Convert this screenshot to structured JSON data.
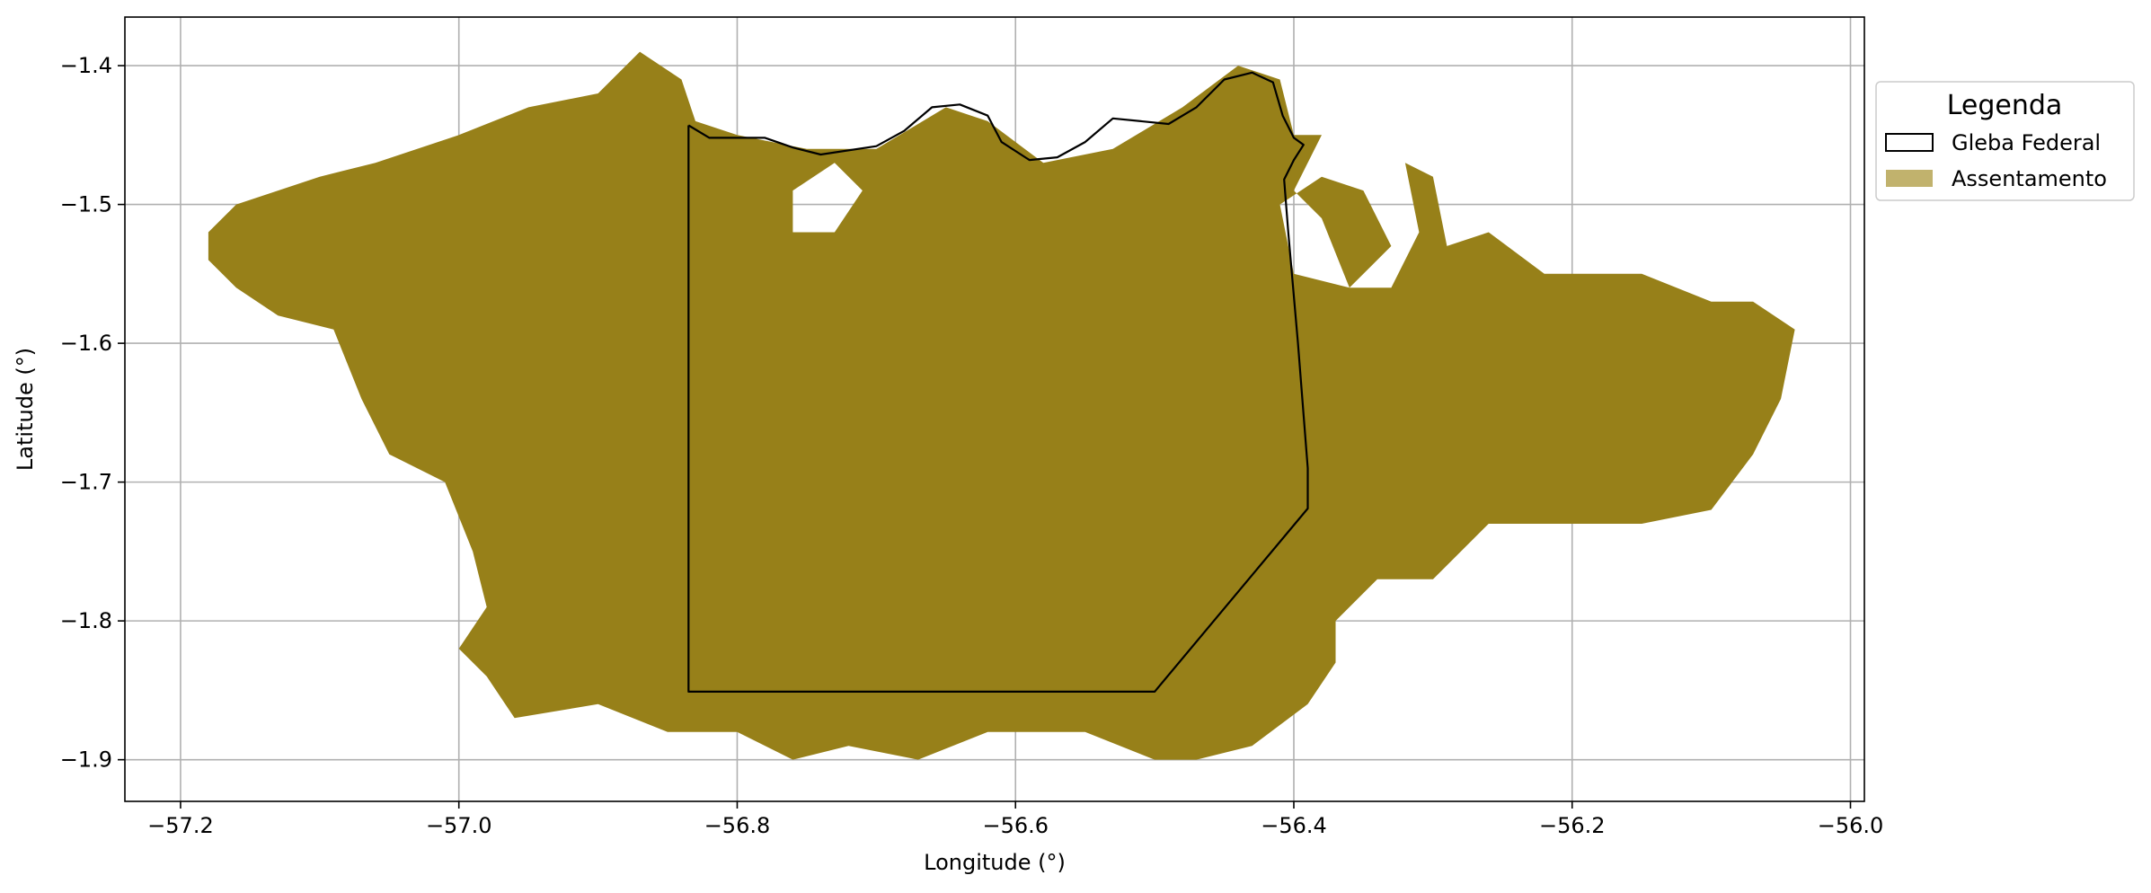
{
  "chart_data": {
    "type": "map",
    "title": "",
    "xlabel": "Longitude (°)",
    "ylabel": "Latitude (°)",
    "xlim": [
      -57.24,
      -55.99
    ],
    "ylim": [
      -1.93,
      -1.365
    ],
    "xticks": [
      -57.2,
      -57.0,
      -56.8,
      -56.6,
      -56.4,
      -56.2,
      -56.0
    ],
    "xtick_labels": [
      "−57.2",
      "−57.0",
      "−56.8",
      "−56.6",
      "−56.4",
      "−56.2",
      "−56.0"
    ],
    "yticks": [
      -1.4,
      -1.5,
      -1.6,
      -1.7,
      -1.8,
      -1.9
    ],
    "ytick_labels": [
      "−1.4",
      "−1.5",
      "−1.6",
      "−1.7",
      "−1.8",
      "−1.9"
    ],
    "grid": true,
    "legend": {
      "title": "Legenda",
      "placement": "outside-right-top",
      "entries": [
        {
          "label": "Gleba Federal",
          "style": "outline",
          "edge_color": "#000000",
          "fill": "#ffffff"
        },
        {
          "label": "Assentamento",
          "style": "filled",
          "fill": "#c1b26d"
        }
      ]
    },
    "colors": {
      "assentamento": "#978019",
      "gleba_outline": "#000000",
      "grid": "#b0b0b0"
    },
    "layers": {
      "assentamento": [
        [
          -57.18,
          -1.52
        ],
        [
          -57.16,
          -1.5
        ],
        [
          -57.1,
          -1.48
        ],
        [
          -57.06,
          -1.47
        ],
        [
          -57.0,
          -1.45
        ],
        [
          -56.95,
          -1.43
        ],
        [
          -56.9,
          -1.42
        ],
        [
          -56.87,
          -1.39
        ],
        [
          -56.84,
          -1.41
        ],
        [
          -56.83,
          -1.44
        ],
        [
          -56.8,
          -1.45
        ],
        [
          -56.75,
          -1.46
        ],
        [
          -56.7,
          -1.46
        ],
        [
          -56.65,
          -1.43
        ],
        [
          -56.62,
          -1.44
        ],
        [
          -56.58,
          -1.47
        ],
        [
          -56.53,
          -1.46
        ],
        [
          -56.48,
          -1.43
        ],
        [
          -56.44,
          -1.4
        ],
        [
          -56.41,
          -1.41
        ],
        [
          -56.4,
          -1.45
        ],
        [
          -56.38,
          -1.45
        ],
        [
          -56.4,
          -1.49
        ],
        [
          -56.38,
          -1.51
        ],
        [
          -56.36,
          -1.56
        ],
        [
          -56.33,
          -1.56
        ],
        [
          -56.31,
          -1.52
        ],
        [
          -56.32,
          -1.47
        ],
        [
          -56.3,
          -1.48
        ],
        [
          -56.29,
          -1.53
        ],
        [
          -56.26,
          -1.52
        ],
        [
          -56.22,
          -1.55
        ],
        [
          -56.2,
          -1.55
        ],
        [
          -56.15,
          -1.55
        ],
        [
          -56.1,
          -1.57
        ],
        [
          -56.07,
          -1.57
        ],
        [
          -56.04,
          -1.59
        ],
        [
          -56.05,
          -1.64
        ],
        [
          -56.07,
          -1.68
        ],
        [
          -56.1,
          -1.72
        ],
        [
          -56.15,
          -1.73
        ],
        [
          -56.22,
          -1.73
        ],
        [
          -56.26,
          -1.73
        ],
        [
          -56.3,
          -1.77
        ],
        [
          -56.34,
          -1.77
        ],
        [
          -56.37,
          -1.8
        ],
        [
          -56.37,
          -1.83
        ],
        [
          -56.39,
          -1.86
        ],
        [
          -56.43,
          -1.89
        ],
        [
          -56.47,
          -1.9
        ],
        [
          -56.5,
          -1.9
        ],
        [
          -56.55,
          -1.88
        ],
        [
          -56.62,
          -1.88
        ],
        [
          -56.67,
          -1.9
        ],
        [
          -56.72,
          -1.89
        ],
        [
          -56.76,
          -1.9
        ],
        [
          -56.8,
          -1.88
        ],
        [
          -56.85,
          -1.88
        ],
        [
          -56.9,
          -1.86
        ],
        [
          -56.96,
          -1.87
        ],
        [
          -56.98,
          -1.84
        ],
        [
          -57.0,
          -1.82
        ],
        [
          -56.98,
          -1.79
        ],
        [
          -56.99,
          -1.75
        ],
        [
          -57.01,
          -1.7
        ],
        [
          -57.05,
          -1.68
        ],
        [
          -57.07,
          -1.64
        ],
        [
          -57.09,
          -1.59
        ],
        [
          -57.13,
          -1.58
        ],
        [
          -57.16,
          -1.56
        ],
        [
          -57.18,
          -1.54
        ]
      ],
      "assentamento_holes": [
        [
          [
            -56.76,
            -1.49
          ],
          [
            -56.73,
            -1.47
          ],
          [
            -56.71,
            -1.49
          ],
          [
            -56.73,
            -1.52
          ],
          [
            -56.76,
            -1.52
          ]
        ],
        [
          [
            -56.41,
            -1.5
          ],
          [
            -56.38,
            -1.48
          ],
          [
            -56.35,
            -1.49
          ],
          [
            -56.33,
            -1.53
          ],
          [
            -56.36,
            -1.56
          ],
          [
            -56.4,
            -1.55
          ]
        ]
      ],
      "gleba_federal": [
        [
          -56.835,
          -1.443
        ],
        [
          -56.82,
          -1.452
        ],
        [
          -56.78,
          -1.452
        ],
        [
          -56.76,
          -1.459
        ],
        [
          -56.74,
          -1.464
        ],
        [
          -56.7,
          -1.458
        ],
        [
          -56.68,
          -1.447
        ],
        [
          -56.66,
          -1.43
        ],
        [
          -56.64,
          -1.428
        ],
        [
          -56.62,
          -1.436
        ],
        [
          -56.61,
          -1.455
        ],
        [
          -56.59,
          -1.468
        ],
        [
          -56.57,
          -1.466
        ],
        [
          -56.55,
          -1.455
        ],
        [
          -56.53,
          -1.438
        ],
        [
          -56.49,
          -1.442
        ],
        [
          -56.47,
          -1.43
        ],
        [
          -56.45,
          -1.41
        ],
        [
          -56.43,
          -1.405
        ],
        [
          -56.415,
          -1.412
        ],
        [
          -56.408,
          -1.436
        ],
        [
          -56.4,
          -1.452
        ],
        [
          -56.393,
          -1.457
        ],
        [
          -56.4,
          -1.468
        ],
        [
          -56.407,
          -1.482
        ],
        [
          -56.404,
          -1.52
        ],
        [
          -56.397,
          -1.6
        ],
        [
          -56.39,
          -1.69
        ],
        [
          -56.39,
          -1.719
        ],
        [
          -56.5,
          -1.851
        ],
        [
          -56.835,
          -1.851
        ],
        [
          -56.835,
          -1.443
        ]
      ]
    }
  }
}
